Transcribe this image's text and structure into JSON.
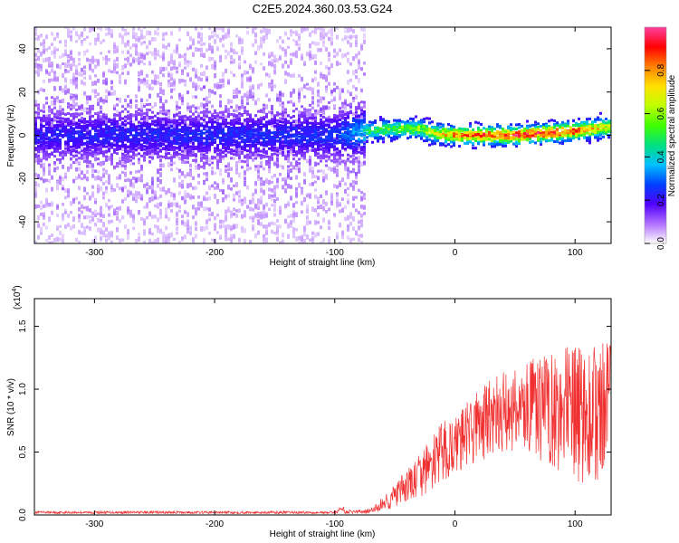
{
  "title": "C2E5.2024.360.03.53.G24",
  "chart_data": [
    {
      "type": "heatmap",
      "xlabel": "Height of straight line (km)",
      "ylabel": "Frequency (Hz)",
      "xlim": [
        -350,
        130
      ],
      "ylim": [
        -50,
        50
      ],
      "xticks": [
        -300,
        -200,
        -100,
        0,
        100
      ],
      "yticks": [
        -40,
        -20,
        0,
        20,
        40
      ],
      "colorbar": {
        "label": "Normalized spectral amplitude",
        "range": [
          0,
          1
        ],
        "ticks": [
          "0.0",
          "0.2",
          "0.4",
          "0.6",
          "0.8"
        ],
        "colors": [
          "#ffffff",
          "#b070ff",
          "#5000ff",
          "#0040ff",
          "#00c0ff",
          "#00e080",
          "#40ff00",
          "#c0ff00",
          "#ffe000",
          "#ff8000",
          "#ff0000",
          "#ff40a0"
        ]
      },
      "ridge": {
        "x": [
          -350,
          -100,
          -75,
          -50,
          -30,
          -20,
          0,
          50,
          100,
          130
        ],
        "center_hz": [
          0,
          0,
          2,
          3,
          3,
          1,
          0,
          0,
          2,
          4
        ],
        "amplitude": [
          0.15,
          0.18,
          0.35,
          0.45,
          0.5,
          0.55,
          0.75,
          0.85,
          0.8,
          0.55
        ]
      }
    },
    {
      "type": "line",
      "xlabel": "Height of straight line (km)",
      "ylabel": "SNR (10 * v/v)",
      "y_multiplier": "(x10",
      "y_multiplier_exp": "4",
      "xlim": [
        -350,
        130
      ],
      "ylim": [
        0,
        1.72
      ],
      "xticks": [
        -300,
        -200,
        -100,
        0,
        100
      ],
      "yticks": [
        "0.0",
        "0.5",
        "1.0",
        "1.5"
      ],
      "color": "#f03030",
      "envelope": {
        "x": [
          -350,
          -100,
          -70,
          -50,
          -30,
          -10,
          0,
          20,
          50,
          80,
          100,
          130
        ],
        "mean": [
          0.02,
          0.02,
          0.03,
          0.15,
          0.3,
          0.5,
          0.55,
          0.72,
          0.85,
          0.85,
          0.8,
          0.78
        ],
        "spread": [
          0.01,
          0.01,
          0.02,
          0.1,
          0.18,
          0.25,
          0.22,
          0.3,
          0.35,
          0.45,
          0.55,
          0.6
        ]
      }
    }
  ]
}
